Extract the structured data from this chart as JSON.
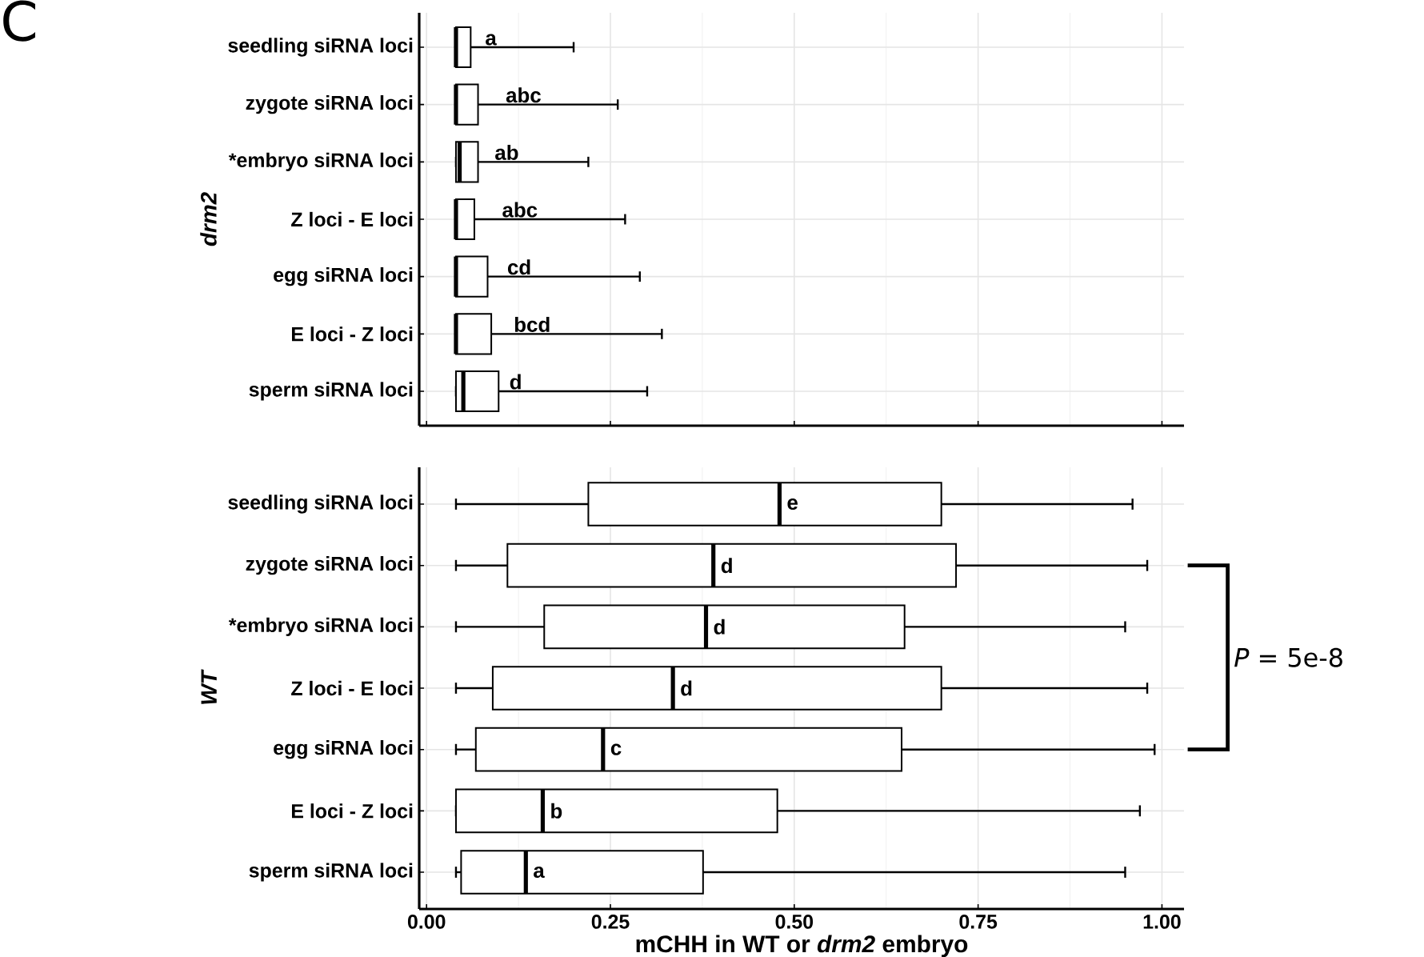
{
  "chart_data": [
    {
      "type": "box",
      "orientation": "horizontal",
      "ylabel": "drm2",
      "tick_labels": "y",
      "grid": true,
      "categories": [
        "seedling siRNA loci",
        "zygote siRNA loci",
        "*embryo siRNA loci",
        "Z loci - E loci",
        "egg siRNA loci",
        "E loci - Z loci",
        "sperm siRNA loci"
      ],
      "boxes": [
        {
          "low": 0.04,
          "q1": 0.04,
          "median": 0.04,
          "q3": 0.06,
          "high": 0.2
        },
        {
          "low": 0.04,
          "q1": 0.04,
          "median": 0.04,
          "q3": 0.07,
          "high": 0.26
        },
        {
          "low": 0.04,
          "q1": 0.04,
          "median": 0.045,
          "q3": 0.07,
          "high": 0.22
        },
        {
          "low": 0.04,
          "q1": 0.04,
          "median": 0.04,
          "q3": 0.065,
          "high": 0.27
        },
        {
          "low": 0.04,
          "q1": 0.04,
          "median": 0.04,
          "q3": 0.083,
          "high": 0.29
        },
        {
          "low": 0.04,
          "q1": 0.04,
          "median": 0.04,
          "q3": 0.088,
          "high": 0.32
        },
        {
          "low": 0.04,
          "q1": 0.04,
          "median": 0.05,
          "q3": 0.098,
          "high": 0.3
        }
      ],
      "xlim": [
        -0.01,
        1.03
      ],
      "xticks": [
        0,
        0.25,
        0.5,
        0.75,
        1
      ],
      "annotations": [
        "C",
        {
          "text": "a",
          "x": 0.077,
          "y": "seedling siRNA loci"
        },
        {
          "text": "abc",
          "x": 0.105,
          "y": "zygote siRNA loci"
        },
        {
          "text": "ab",
          "x": 0.09,
          "y": "*embryo siRNA loci"
        },
        {
          "text": "abc",
          "x": 0.1,
          "y": "Z loci - E loci"
        },
        {
          "text": "cd",
          "x": 0.107,
          "y": "egg siRNA loci"
        },
        {
          "text": "bcd",
          "x": 0.116,
          "y": "E loci - Z loci"
        },
        {
          "text": "d",
          "x": 0.11,
          "y": "sperm siRNA loci"
        }
      ]
    },
    {
      "type": "box",
      "orientation": "horizontal",
      "ylabel": "WT",
      "xlabel": "mCHH in WT or *drm2* embryo",
      "grid": true,
      "categories": [
        "seedling siRNA loci",
        "zygote siRNA loci",
        "*embryo siRNA loci",
        "Z loci - E loci",
        "egg siRNA loci",
        "E loci - Z loci",
        "sperm siRNA loci"
      ],
      "boxes": [
        {
          "low": 0.04,
          "q1": 0.22,
          "median": 0.48,
          "q3": 0.7,
          "high": 0.96
        },
        {
          "low": 0.04,
          "q1": 0.11,
          "median": 0.39,
          "q3": 0.72,
          "high": 0.98
        },
        {
          "low": 0.04,
          "q1": 0.16,
          "median": 0.38,
          "q3": 0.65,
          "high": 0.95
        },
        {
          "low": 0.04,
          "q1": 0.09,
          "median": 0.335,
          "q3": 0.7,
          "high": 0.98
        },
        {
          "low": 0.04,
          "q1": 0.067,
          "median": 0.24,
          "q3": 0.646,
          "high": 0.99
        },
        {
          "low": 0.04,
          "q1": 0.04,
          "median": 0.158,
          "q3": 0.477,
          "high": 0.97
        },
        {
          "low": 0.04,
          "q1": 0.047,
          "median": 0.135,
          "q3": 0.376,
          "high": 0.95
        }
      ],
      "xlim": [
        -0.01,
        1.03
      ],
      "xticks": [
        {
          "value": 0,
          "label": "0.00"
        },
        0.25,
        {
          "value": 0.5,
          "label": "0.50"
        },
        0.75,
        {
          "value": 1,
          "label": "1.00"
        }
      ],
      "annotations": [
        {
          "text": "e",
          "x": 0.48,
          "y": "seedling siRNA loci"
        },
        {
          "text": "d",
          "x": 0.39,
          "y": "zygote siRNA loci"
        },
        {
          "text": "d",
          "x": 0.38,
          "y": "*embryo siRNA loci"
        },
        {
          "text": "d",
          "x": 0.335,
          "y": "Z loci - E loci"
        },
        {
          "text": "c",
          "x": 0.24,
          "y": "egg siRNA loci"
        },
        {
          "text": "b",
          "x": 0.158,
          "y": "E loci - Z loci"
        },
        {
          "text": "a",
          "x": 0.135,
          "y": "sperm siRNA loci"
        },
        "*P* = 5e-8"
      ]
    }
  ]
}
